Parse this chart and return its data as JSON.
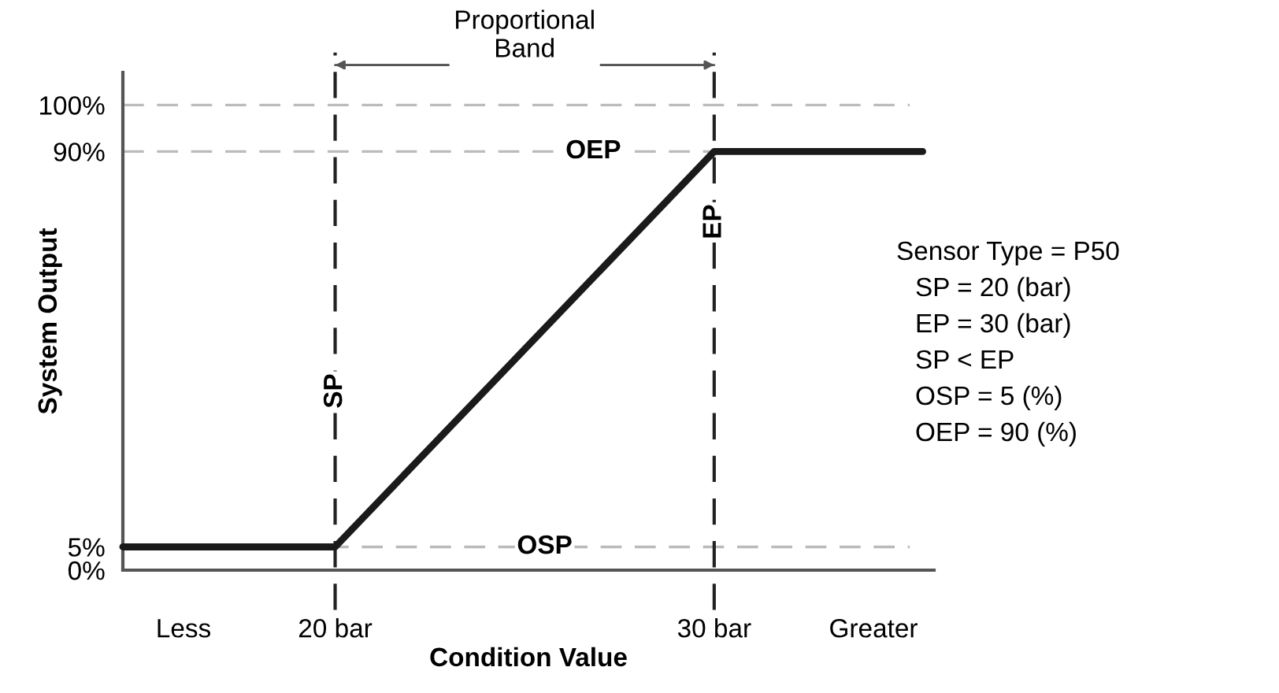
{
  "chart_data": {
    "type": "line",
    "xlabel": "Condition Value",
    "ylabel": "System Output",
    "xlim": [
      14.4,
      35.8
    ],
    "ylim": [
      0,
      107
    ],
    "xticks": [
      {
        "value": 16,
        "label": "Less"
      },
      {
        "value": 20,
        "label": "20 bar"
      },
      {
        "value": 30,
        "label": "30 bar"
      },
      {
        "value": 34.2,
        "label": "Greater"
      }
    ],
    "yticks": [
      {
        "value": 0,
        "label": "0%"
      },
      {
        "value": 5,
        "label": "5%"
      },
      {
        "value": 90,
        "label": "90%"
      },
      {
        "value": 100,
        "label": "100%"
      }
    ],
    "series": [
      {
        "color": "#1a1a1a",
        "x": [
          14.4,
          20,
          30,
          35.5
        ],
        "values": [
          5,
          5,
          90,
          90
        ]
      }
    ],
    "ref_lines": [
      {
        "axis": "y",
        "value": 100,
        "label": null,
        "color": "#bbbbbb",
        "line_style": "dashed"
      },
      {
        "axis": "y",
        "value": 90,
        "label": "OEP",
        "color": "#bbbbbb",
        "line_style": "dashed"
      },
      {
        "axis": "y",
        "value": 5,
        "label": "OSP",
        "color": "#bbbbbb",
        "line_style": "dashed"
      },
      {
        "axis": "x",
        "value": 20,
        "label": "SP",
        "color": "#222222",
        "line_style": "dashed"
      },
      {
        "axis": "x",
        "value": 30,
        "label": "EP",
        "color": "#222222",
        "line_style": "dashed"
      }
    ],
    "annotations": [
      "Proportional\nBand",
      "Sensor Type = P50",
      "SP = 20 (bar)",
      "EP = 30 (bar)",
      "SP < EP",
      "OSP = 5 (%)",
      "OEP = 90 (%)"
    ],
    "grid": false,
    "marker": "none",
    "line_style": "solid"
  }
}
